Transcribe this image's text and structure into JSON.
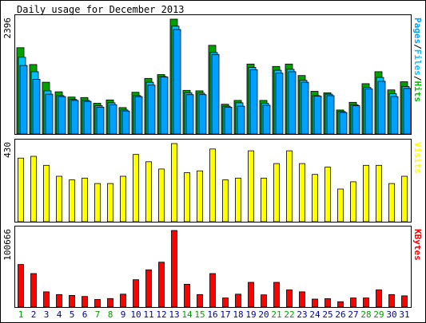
{
  "chart_data": [
    {
      "type": "bar",
      "title": "Daily usage for December 2013",
      "ymax_label": "2396",
      "legend": [
        {
          "text": "Pages",
          "color": "#00a0ff"
        },
        {
          "text": "/",
          "color": "#000000"
        },
        {
          "text": "Files",
          "color": "#00c0ff"
        },
        {
          "text": "/",
          "color": "#000000"
        },
        {
          "text": "Hits",
          "color": "#00c000"
        }
      ],
      "categories": [
        "1",
        "2",
        "3",
        "4",
        "5",
        "6",
        "7",
        "8",
        "9",
        "10",
        "11",
        "12",
        "13",
        "14",
        "15",
        "16",
        "17",
        "18",
        "19",
        "20",
        "21",
        "22",
        "23",
        "24",
        "25",
        "26",
        "27",
        "28",
        "29",
        "30",
        "31"
      ],
      "series": [
        {
          "name": "Hits",
          "color": "#00a000",
          "values": [
            1800,
            1450,
            1080,
            880,
            770,
            760,
            640,
            710,
            550,
            870,
            1160,
            1240,
            2396,
            910,
            900,
            1850,
            620,
            700,
            1460,
            700,
            1410,
            1460,
            1220,
            890,
            860,
            500,
            660,
            1050,
            1300,
            920,
            1090
          ]
        },
        {
          "name": "Files",
          "color": "#00c0ff",
          "values": [
            1600,
            1300,
            900,
            800,
            720,
            700,
            590,
            650,
            500,
            800,
            1080,
            1200,
            2250,
            860,
            850,
            1700,
            580,
            650,
            1390,
            640,
            1330,
            1350,
            1120,
            800,
            830,
            470,
            610,
            970,
            1180,
            840,
            990
          ]
        },
        {
          "name": "Pages",
          "color": "#00a0ff",
          "values": [
            1430,
            1140,
            830,
            780,
            700,
            680,
            560,
            610,
            480,
            780,
            1020,
            1190,
            2180,
            820,
            820,
            1660,
            560,
            580,
            1340,
            600,
            1270,
            1300,
            1080,
            790,
            800,
            450,
            590,
            940,
            1100,
            780,
            950
          ]
        }
      ],
      "ylim": [
        0,
        2396
      ]
    },
    {
      "type": "bar",
      "ymax_label": "430",
      "legend": [
        {
          "text": "Visits",
          "color": "#ffff00"
        }
      ],
      "categories": [
        "1",
        "2",
        "3",
        "4",
        "5",
        "6",
        "7",
        "8",
        "9",
        "10",
        "11",
        "12",
        "13",
        "14",
        "15",
        "16",
        "17",
        "18",
        "19",
        "20",
        "21",
        "22",
        "23",
        "24",
        "25",
        "26",
        "27",
        "28",
        "29",
        "30",
        "31"
      ],
      "series": [
        {
          "name": "Visits",
          "color": "#ffff00",
          "values": [
            350,
            360,
            310,
            250,
            230,
            240,
            210,
            210,
            250,
            370,
            330,
            290,
            430,
            270,
            280,
            400,
            230,
            240,
            390,
            240,
            320,
            390,
            320,
            260,
            300,
            180,
            220,
            310,
            310,
            210,
            250
          ]
        }
      ],
      "ylim": [
        0,
        430
      ]
    },
    {
      "type": "bar",
      "ymax_label": "100666",
      "legend": [
        {
          "text": "KBytes",
          "color": "#ff0000"
        }
      ],
      "categories": [
        "1",
        "2",
        "3",
        "4",
        "5",
        "6",
        "7",
        "8",
        "9",
        "10",
        "11",
        "12",
        "13",
        "14",
        "15",
        "16",
        "17",
        "18",
        "19",
        "20",
        "21",
        "22",
        "23",
        "24",
        "25",
        "26",
        "27",
        "28",
        "29",
        "30",
        "31"
      ],
      "series": [
        {
          "name": "KBytes",
          "color": "#ff0000",
          "values": [
            56000,
            44000,
            20000,
            16500,
            15300,
            13900,
            10000,
            11200,
            17000,
            36000,
            49000,
            59000,
            100666,
            30000,
            16500,
            44000,
            12000,
            17000,
            32500,
            16000,
            32500,
            22500,
            20000,
            10500,
            11000,
            7000,
            12000,
            12000,
            22500,
            16500,
            14800
          ]
        }
      ],
      "ylim": [
        0,
        100666
      ]
    }
  ],
  "day_colors": {
    "weekday": "#0000a0",
    "weekend": "#00a000",
    "weekend_days": [
      "1",
      "7",
      "8",
      "14",
      "15",
      "21",
      "22",
      "28",
      "29"
    ]
  }
}
